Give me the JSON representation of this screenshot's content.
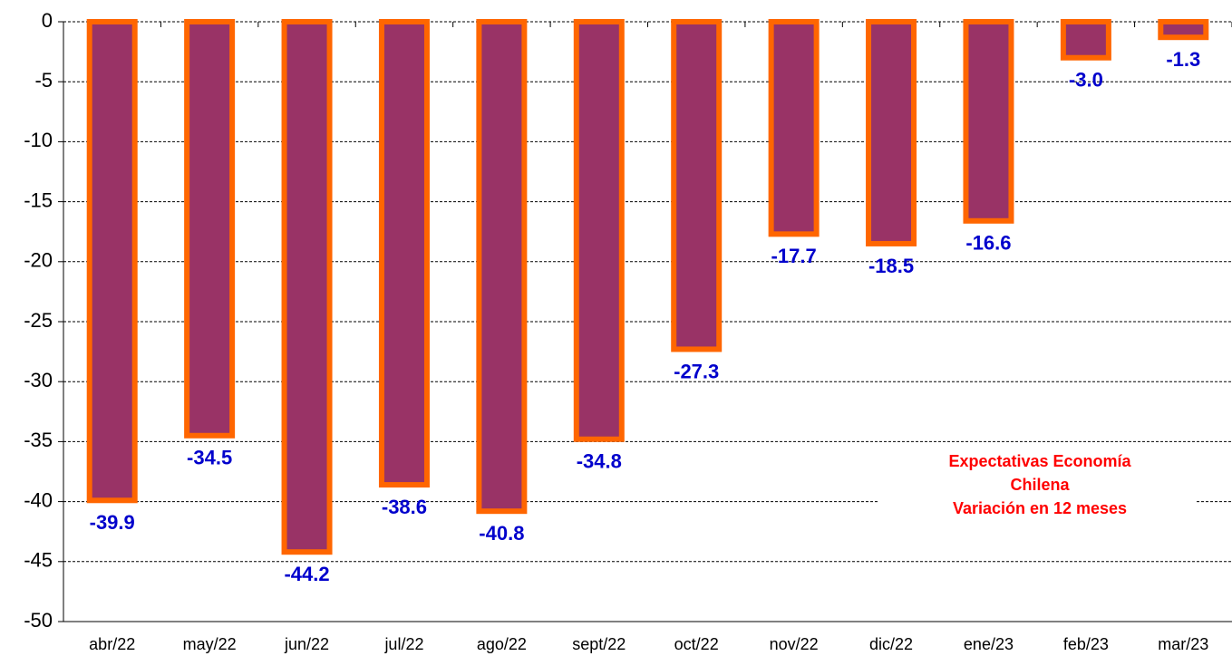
{
  "chart_data": {
    "type": "bar",
    "categories": [
      "abr/22",
      "may/22",
      "jun/22",
      "jul/22",
      "ago/22",
      "sept/22",
      "oct/22",
      "nov/22",
      "dic/22",
      "ene/23",
      "feb/23",
      "mar/23"
    ],
    "values": [
      -39.9,
      -34.5,
      -44.2,
      -38.6,
      -40.8,
      -34.8,
      -27.3,
      -17.7,
      -18.5,
      -16.6,
      -3.0,
      -1.3
    ],
    "value_labels": [
      "-39.9",
      "-34.5",
      "-44.2",
      "-38.6",
      "-40.8",
      "-34.8",
      "-27.3",
      "-17.7",
      "-18.5",
      "-16.6",
      "-3.0",
      "-1.3"
    ],
    "color": "#993366",
    "edge_color": "#ff6600",
    "label_color": "#0000cc",
    "ylim": [
      -50,
      0
    ],
    "yticks": [
      0,
      -5,
      -10,
      -15,
      -20,
      -25,
      -30,
      -35,
      -40,
      -45,
      -50
    ],
    "grid": true,
    "annotations": [
      "Expectativas Economía",
      "Chilena",
      "Variación  en 12 meses"
    ]
  }
}
